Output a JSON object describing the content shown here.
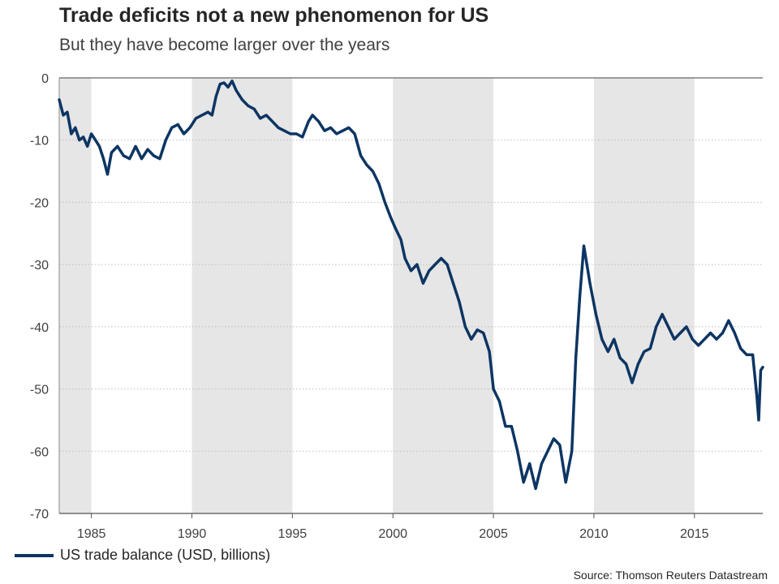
{
  "chart_data": {
    "type": "line",
    "title": "Trade deficits not a new phenomenon for US",
    "subtitle": "But they have become larger over the years",
    "xlabel": "",
    "ylabel": "",
    "xlim": [
      1983.4,
      2018.4
    ],
    "ylim": [
      -70,
      0
    ],
    "x_ticks": [
      "1985",
      "1990",
      "1995",
      "2000",
      "2005",
      "2010",
      "2015"
    ],
    "y_ticks": [
      "0",
      "-10",
      "-20",
      "-30",
      "-40",
      "-50",
      "-60",
      "-70"
    ],
    "grid": "horizontal dotted",
    "shaded_bands": [
      {
        "from": 1983.4,
        "to": 1985
      },
      {
        "from": 1990,
        "to": 1995
      },
      {
        "from": 2000,
        "to": 2005
      },
      {
        "from": 2010,
        "to": 2015
      }
    ],
    "series": [
      {
        "name": "US trade balance (USD, billions)",
        "color": "#0d3563",
        "points": [
          [
            1983.4,
            -3.5
          ],
          [
            1983.6,
            -6
          ],
          [
            1983.8,
            -5.5
          ],
          [
            1984.0,
            -9
          ],
          [
            1984.2,
            -8
          ],
          [
            1984.4,
            -10
          ],
          [
            1984.6,
            -9.5
          ],
          [
            1984.8,
            -11
          ],
          [
            1985.0,
            -9
          ],
          [
            1985.2,
            -10
          ],
          [
            1985.4,
            -11
          ],
          [
            1985.6,
            -13
          ],
          [
            1985.8,
            -15.5
          ],
          [
            1986.0,
            -12
          ],
          [
            1986.3,
            -11
          ],
          [
            1986.6,
            -12.5
          ],
          [
            1986.9,
            -13
          ],
          [
            1987.2,
            -11
          ],
          [
            1987.5,
            -13
          ],
          [
            1987.8,
            -11.5
          ],
          [
            1988.1,
            -12.5
          ],
          [
            1988.4,
            -13
          ],
          [
            1988.7,
            -10
          ],
          [
            1989.0,
            -8
          ],
          [
            1989.3,
            -7.5
          ],
          [
            1989.6,
            -9
          ],
          [
            1989.9,
            -8
          ],
          [
            1990.2,
            -6.5
          ],
          [
            1990.5,
            -6
          ],
          [
            1990.8,
            -5.5
          ],
          [
            1991.0,
            -6
          ],
          [
            1991.2,
            -3
          ],
          [
            1991.4,
            -1
          ],
          [
            1991.6,
            -0.8
          ],
          [
            1991.8,
            -1.5
          ],
          [
            1992.0,
            -0.5
          ],
          [
            1992.2,
            -2
          ],
          [
            1992.5,
            -3.5
          ],
          [
            1992.8,
            -4.5
          ],
          [
            1993.1,
            -5
          ],
          [
            1993.4,
            -6.5
          ],
          [
            1993.7,
            -6
          ],
          [
            1994.0,
            -7
          ],
          [
            1994.3,
            -8
          ],
          [
            1994.6,
            -8.5
          ],
          [
            1994.9,
            -9
          ],
          [
            1995.2,
            -9
          ],
          [
            1995.5,
            -9.5
          ],
          [
            1995.8,
            -7
          ],
          [
            1996.0,
            -6
          ],
          [
            1996.3,
            -7
          ],
          [
            1996.6,
            -8.5
          ],
          [
            1996.9,
            -8
          ],
          [
            1997.2,
            -9
          ],
          [
            1997.5,
            -8.5
          ],
          [
            1997.8,
            -8
          ],
          [
            1998.1,
            -9
          ],
          [
            1998.4,
            -12.5
          ],
          [
            1998.7,
            -14
          ],
          [
            1999.0,
            -15
          ],
          [
            1999.3,
            -17
          ],
          [
            1999.6,
            -20
          ],
          [
            1999.9,
            -22.5
          ],
          [
            2000.1,
            -24
          ],
          [
            2000.4,
            -26
          ],
          [
            2000.6,
            -29
          ],
          [
            2000.9,
            -31
          ],
          [
            2001.2,
            -30
          ],
          [
            2001.5,
            -33
          ],
          [
            2001.8,
            -31
          ],
          [
            2002.1,
            -30
          ],
          [
            2002.4,
            -29
          ],
          [
            2002.7,
            -30
          ],
          [
            2003.0,
            -33
          ],
          [
            2003.3,
            -36
          ],
          [
            2003.6,
            -40
          ],
          [
            2003.9,
            -42
          ],
          [
            2004.2,
            -40.5
          ],
          [
            2004.5,
            -41
          ],
          [
            2004.8,
            -44
          ],
          [
            2005.0,
            -50
          ],
          [
            2005.3,
            -52
          ],
          [
            2005.6,
            -56
          ],
          [
            2005.9,
            -56
          ],
          [
            2006.2,
            -60
          ],
          [
            2006.5,
            -65
          ],
          [
            2006.8,
            -62
          ],
          [
            2007.1,
            -66
          ],
          [
            2007.4,
            -62
          ],
          [
            2007.7,
            -60
          ],
          [
            2008.0,
            -58
          ],
          [
            2008.3,
            -59
          ],
          [
            2008.6,
            -65
          ],
          [
            2008.9,
            -60
          ],
          [
            2009.1,
            -45
          ],
          [
            2009.3,
            -35
          ],
          [
            2009.5,
            -27
          ],
          [
            2009.8,
            -33
          ],
          [
            2010.1,
            -38
          ],
          [
            2010.4,
            -42
          ],
          [
            2010.7,
            -44
          ],
          [
            2011.0,
            -42
          ],
          [
            2011.3,
            -45
          ],
          [
            2011.6,
            -46
          ],
          [
            2011.9,
            -49
          ],
          [
            2012.2,
            -46
          ],
          [
            2012.5,
            -44
          ],
          [
            2012.8,
            -43.5
          ],
          [
            2013.1,
            -40
          ],
          [
            2013.4,
            -38
          ],
          [
            2013.7,
            -40
          ],
          [
            2014.0,
            -42
          ],
          [
            2014.3,
            -41
          ],
          [
            2014.6,
            -40
          ],
          [
            2014.9,
            -42
          ],
          [
            2015.2,
            -43
          ],
          [
            2015.5,
            -42
          ],
          [
            2015.8,
            -41
          ],
          [
            2016.1,
            -42
          ],
          [
            2016.4,
            -41
          ],
          [
            2016.7,
            -39
          ],
          [
            2017.0,
            -41
          ],
          [
            2017.3,
            -43.5
          ],
          [
            2017.6,
            -44.5
          ],
          [
            2017.9,
            -44.5
          ],
          [
            2018.1,
            -51
          ],
          [
            2018.2,
            -55
          ],
          [
            2018.3,
            -47
          ],
          [
            2018.4,
            -46.5
          ]
        ]
      }
    ],
    "legend": {
      "label": "US trade balance (USD, billions)",
      "position": "bottom-left"
    },
    "source": "Source: Thomson Reuters Datastream"
  }
}
